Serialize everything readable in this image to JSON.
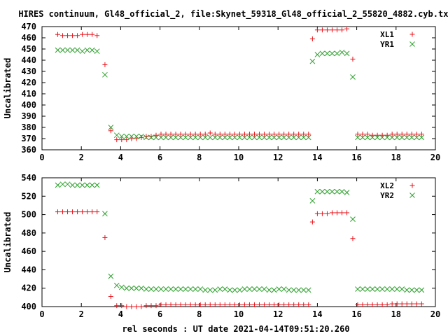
{
  "title": "HIRES continuum, Gl48_official_2, file:Skynet_59318_Gl48_official_2_55820_4882.cyb.txt",
  "xlabel": "rel seconds : UT date 2021-04-14T09:51:20.260",
  "colors": {
    "red": "#e8141c",
    "green": "#2ca02c"
  },
  "chart_data": [
    {
      "type": "scatter",
      "ylabel": "Uncalibrated",
      "xlim": [
        0,
        20
      ],
      "ylim": [
        360,
        470
      ],
      "xticks": [
        "0",
        "2",
        "4",
        "6",
        "8",
        "10",
        "12",
        "14",
        "16",
        "18",
        "20"
      ],
      "yticks": [
        "360",
        "370",
        "380",
        "390",
        "400",
        "410",
        "420",
        "430",
        "440",
        "450",
        "460",
        "470"
      ],
      "legend": "top-right",
      "series": [
        {
          "name": "XL1",
          "marker": "plus",
          "color": "red",
          "x": [
            0.8,
            1.05,
            1.3,
            1.55,
            1.8,
            2.05,
            2.3,
            2.55,
            2.8,
            3.2,
            3.5,
            3.8,
            4.05,
            4.3,
            4.55,
            4.8,
            5.05,
            5.3,
            5.55,
            5.8,
            6.05,
            6.3,
            6.55,
            6.8,
            7.05,
            7.3,
            7.55,
            7.8,
            8.05,
            8.3,
            8.55,
            8.8,
            9.05,
            9.3,
            9.55,
            9.8,
            10.05,
            10.3,
            10.55,
            10.8,
            11.05,
            11.3,
            11.55,
            11.8,
            12.05,
            12.3,
            12.55,
            12.8,
            13.05,
            13.3,
            13.55,
            13.75,
            14.0,
            14.25,
            14.5,
            14.75,
            15.0,
            15.25,
            15.5,
            15.8,
            16.05,
            16.3,
            16.55,
            16.8,
            17.05,
            17.3,
            17.55,
            17.8,
            18.05,
            18.3,
            18.55,
            18.8,
            19.05,
            19.3
          ],
          "y": [
            463,
            462,
            462,
            462,
            462,
            463,
            463,
            463,
            462,
            436,
            377,
            369,
            369,
            369,
            370,
            370,
            371,
            372,
            372,
            373,
            374,
            374,
            374,
            374,
            374,
            374,
            374,
            374,
            374,
            374,
            375,
            374,
            374,
            374,
            374,
            374,
            374,
            374,
            374,
            374,
            374,
            374,
            374,
            374,
            374,
            374,
            374,
            374,
            374,
            374,
            374,
            459,
            467,
            467,
            467,
            467,
            467,
            467,
            468,
            441,
            374,
            374,
            374,
            373,
            373,
            373,
            373,
            374,
            374,
            374,
            374,
            374,
            374,
            374
          ]
        },
        {
          "name": "YR1",
          "marker": "cross",
          "color": "green",
          "x": [
            0.8,
            1.05,
            1.3,
            1.55,
            1.8,
            2.05,
            2.3,
            2.55,
            2.8,
            3.2,
            3.5,
            3.8,
            4.05,
            4.3,
            4.55,
            4.8,
            5.05,
            5.3,
            5.55,
            5.8,
            6.05,
            6.3,
            6.55,
            6.8,
            7.05,
            7.3,
            7.55,
            7.8,
            8.05,
            8.3,
            8.55,
            8.8,
            9.05,
            9.3,
            9.55,
            9.8,
            10.05,
            10.3,
            10.55,
            10.8,
            11.05,
            11.3,
            11.55,
            11.8,
            12.05,
            12.3,
            12.55,
            12.8,
            13.05,
            13.3,
            13.55,
            13.75,
            14.0,
            14.25,
            14.5,
            14.75,
            15.0,
            15.25,
            15.5,
            15.8,
            16.05,
            16.3,
            16.55,
            16.8,
            17.05,
            17.3,
            17.55,
            17.8,
            18.05,
            18.3,
            18.55,
            18.8,
            19.05,
            19.3
          ],
          "y": [
            449,
            449,
            449,
            449,
            449,
            448,
            449,
            449,
            448,
            427,
            380,
            373,
            372,
            372,
            372,
            372,
            372,
            371,
            371,
            371,
            371,
            371,
            371,
            371,
            371,
            371,
            371,
            371,
            371,
            371,
            371,
            371,
            371,
            371,
            371,
            371,
            371,
            371,
            371,
            371,
            371,
            371,
            371,
            371,
            371,
            371,
            371,
            371,
            371,
            371,
            371,
            439,
            445,
            446,
            446,
            446,
            446,
            447,
            446,
            425,
            371,
            371,
            371,
            371,
            371,
            371,
            371,
            371,
            371,
            371,
            371,
            371,
            371,
            371
          ]
        }
      ]
    },
    {
      "type": "scatter",
      "ylabel": "Uncalibrated",
      "xlim": [
        0,
        20
      ],
      "ylim": [
        400,
        540
      ],
      "xticks": [
        "0",
        "2",
        "4",
        "6",
        "8",
        "10",
        "12",
        "14",
        "16",
        "18",
        "20"
      ],
      "yticks": [
        "400",
        "420",
        "440",
        "460",
        "480",
        "500",
        "520",
        "540"
      ],
      "legend": "top-right",
      "series": [
        {
          "name": "XL2",
          "marker": "plus",
          "color": "red",
          "x": [
            0.8,
            1.05,
            1.3,
            1.55,
            1.8,
            2.05,
            2.3,
            2.55,
            2.8,
            3.2,
            3.5,
            3.8,
            4.05,
            4.3,
            4.55,
            4.8,
            5.05,
            5.3,
            5.55,
            5.8,
            6.05,
            6.3,
            6.55,
            6.8,
            7.05,
            7.3,
            7.55,
            7.8,
            8.05,
            8.3,
            8.55,
            8.8,
            9.05,
            9.3,
            9.55,
            9.8,
            10.05,
            10.3,
            10.55,
            10.8,
            11.05,
            11.3,
            11.55,
            11.8,
            12.05,
            12.3,
            12.55,
            12.8,
            13.05,
            13.3,
            13.55,
            13.75,
            14.0,
            14.25,
            14.5,
            14.75,
            15.0,
            15.25,
            15.5,
            15.8,
            16.05,
            16.3,
            16.55,
            16.8,
            17.05,
            17.3,
            17.55,
            17.8,
            18.05,
            18.3,
            18.55,
            18.8,
            19.05,
            19.3
          ],
          "y": [
            503,
            503,
            503,
            503,
            503,
            503,
            503,
            503,
            503,
            475,
            411,
            401,
            401,
            400,
            400,
            400,
            400,
            401,
            401,
            401,
            402,
            402,
            402,
            402,
            402,
            402,
            402,
            402,
            402,
            402,
            402,
            402,
            402,
            402,
            402,
            402,
            402,
            402,
            402,
            402,
            402,
            402,
            402,
            402,
            402,
            402,
            402,
            402,
            402,
            402,
            402,
            492,
            501,
            501,
            501,
            502,
            502,
            502,
            502,
            474,
            402,
            402,
            402,
            402,
            402,
            402,
            402,
            403,
            403,
            403,
            403,
            403,
            403,
            403
          ]
        },
        {
          "name": "YR2",
          "marker": "cross",
          "color": "green",
          "x": [
            0.8,
            1.05,
            1.3,
            1.55,
            1.8,
            2.05,
            2.3,
            2.55,
            2.8,
            3.2,
            3.5,
            3.8,
            4.05,
            4.3,
            4.55,
            4.8,
            5.05,
            5.3,
            5.55,
            5.8,
            6.05,
            6.3,
            6.55,
            6.8,
            7.05,
            7.3,
            7.55,
            7.8,
            8.05,
            8.3,
            8.55,
            8.8,
            9.05,
            9.3,
            9.55,
            9.8,
            10.05,
            10.3,
            10.55,
            10.8,
            11.05,
            11.3,
            11.55,
            11.8,
            12.05,
            12.3,
            12.55,
            12.8,
            13.05,
            13.3,
            13.55,
            13.75,
            14.0,
            14.25,
            14.5,
            14.75,
            15.0,
            15.25,
            15.5,
            15.8,
            16.05,
            16.3,
            16.55,
            16.8,
            17.05,
            17.3,
            17.55,
            17.8,
            18.05,
            18.3,
            18.55,
            18.8,
            19.05,
            19.3
          ],
          "y": [
            532,
            533,
            533,
            532,
            532,
            532,
            532,
            532,
            532,
            501,
            433,
            423,
            421,
            420,
            420,
            420,
            420,
            419,
            419,
            419,
            419,
            419,
            419,
            419,
            419,
            419,
            419,
            419,
            419,
            418,
            418,
            418,
            419,
            419,
            418,
            418,
            418,
            419,
            419,
            419,
            419,
            419,
            418,
            418,
            419,
            419,
            418,
            418,
            418,
            418,
            418,
            515,
            525,
            525,
            525,
            525,
            525,
            525,
            524,
            495,
            419,
            419,
            419,
            419,
            419,
            419,
            419,
            419,
            419,
            419,
            418,
            418,
            418,
            418
          ]
        }
      ]
    }
  ]
}
